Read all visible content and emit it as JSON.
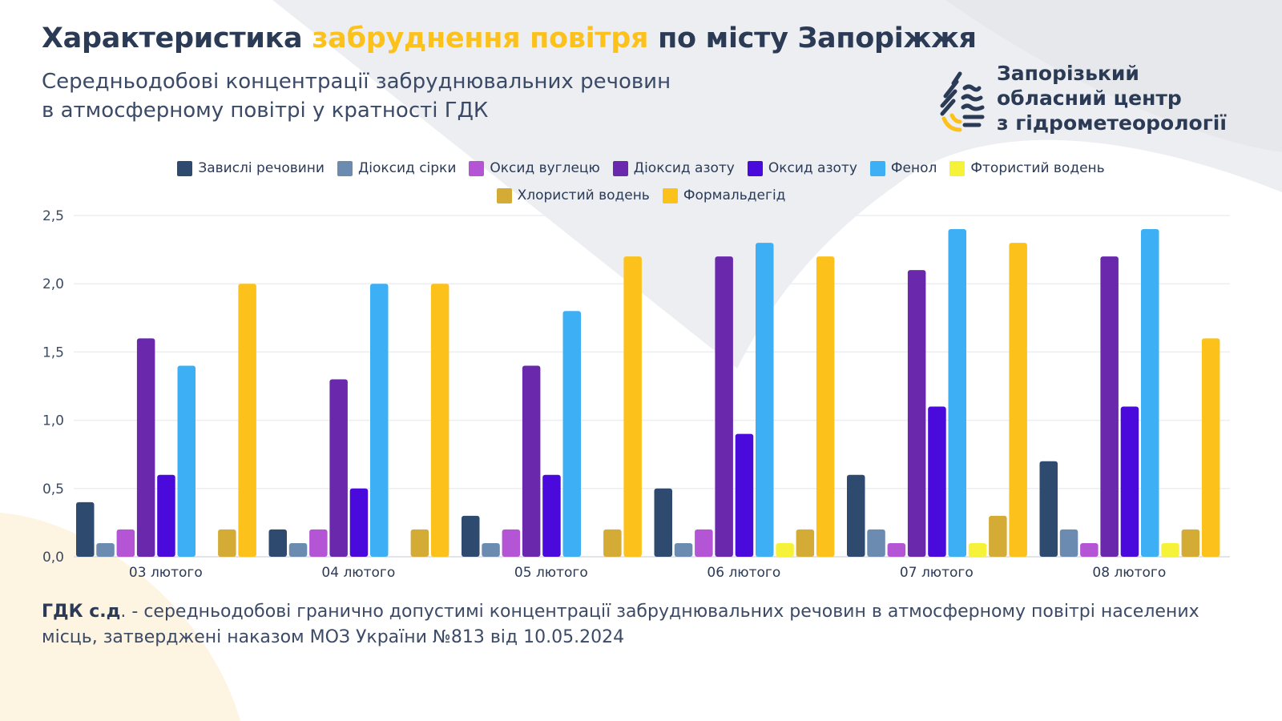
{
  "header": {
    "title_part1": "Характеристика",
    "title_highlight": "забруднення повітря",
    "title_part2": "по місту Запоріжжя",
    "subtitle_line1": "Середньодобові концентрації забруднювальних речовин",
    "subtitle_line2": "в атмосферному повітрі у кратності ГДК"
  },
  "logo": {
    "line1": "Запорізький",
    "line2": "обласний центр",
    "line3": "з гідрометеорології"
  },
  "footer": {
    "term": "ГДК с.д",
    "text": ". - середньодобові гранично допустимі концентрації забруднювальних речовин в атмосферному повітрі населених місць, затверджені наказом МОЗ України №813 від 10.05.2024"
  },
  "chart_data": {
    "type": "bar",
    "title": "",
    "xlabel": "",
    "ylabel": "",
    "ylim": [
      0,
      2.5
    ],
    "yticks": [
      "0,0",
      "0,5",
      "1,0",
      "1,5",
      "2,0",
      "2,5"
    ],
    "grid": true,
    "legend_position": "top-center",
    "categories": [
      "03 лютого",
      "04 лютого",
      "05 лютого",
      "06 лютого",
      "07 лютого",
      "08 лютого"
    ],
    "series": [
      {
        "name": "Завислі речовини",
        "color": "#2e4a6e",
        "values": [
          0.4,
          0.2,
          0.3,
          0.5,
          0.6,
          0.7
        ]
      },
      {
        "name": "Діоксид сірки",
        "color": "#6b8bb0",
        "values": [
          0.1,
          0.1,
          0.1,
          0.1,
          0.2,
          0.2
        ]
      },
      {
        "name": "Оксид вуглецю",
        "color": "#b455d6",
        "values": [
          0.2,
          0.2,
          0.2,
          0.2,
          0.1,
          0.1
        ]
      },
      {
        "name": "Діоксид азоту",
        "color": "#6a28ad",
        "values": [
          1.6,
          1.3,
          1.4,
          2.2,
          2.1,
          2.2
        ]
      },
      {
        "name": "Оксид азоту",
        "color": "#4a0adb",
        "values": [
          0.6,
          0.5,
          0.6,
          0.9,
          1.1,
          1.1
        ]
      },
      {
        "name": "Фенол",
        "color": "#3db0f5",
        "values": [
          1.4,
          2.0,
          1.8,
          2.3,
          2.4,
          2.4
        ]
      },
      {
        "name": "Фтористий водень",
        "color": "#f6f23a",
        "values": [
          0,
          0,
          0,
          0.1,
          0.1,
          0.1
        ]
      },
      {
        "name": "Хлористий водень",
        "color": "#d4ab35",
        "values": [
          0.2,
          0.2,
          0.2,
          0.2,
          0.3,
          0.2
        ]
      },
      {
        "name": "Формальдегід",
        "color": "#fcc21b",
        "values": [
          2.0,
          2.0,
          2.2,
          2.2,
          2.3,
          1.6
        ]
      }
    ]
  }
}
